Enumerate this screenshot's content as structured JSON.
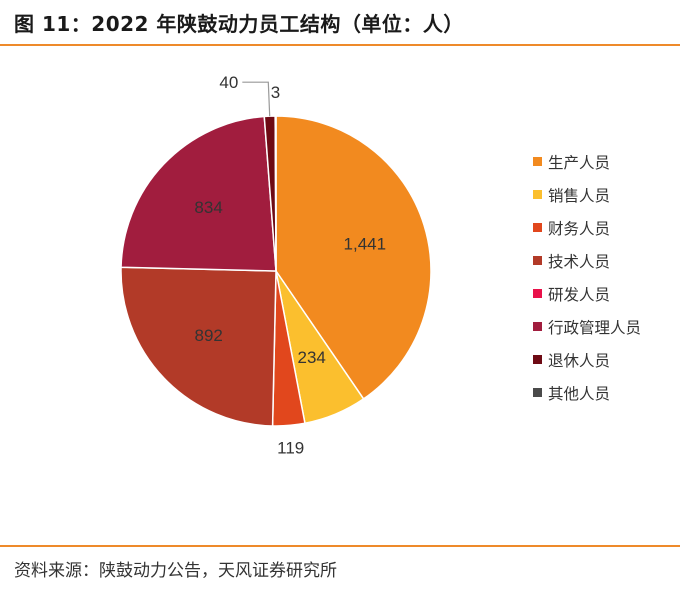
{
  "title": "图 11：2022 年陕鼓动力员工结构（单位：人）",
  "source": "资料来源：陕鼓动力公告，天风证券研究所",
  "chart_data": {
    "type": "pie",
    "categories": [
      "生产人员",
      "销售人员",
      "财务人员",
      "技术人员",
      "研发人员",
      "行政管理人员",
      "退休人员",
      "其他人员"
    ],
    "values": [
      1441,
      234,
      119,
      892,
      0,
      834,
      40,
      3
    ],
    "labels": [
      "1,441",
      "234",
      "119",
      "892",
      "",
      "834",
      "40",
      "3"
    ],
    "colors": [
      "#f28a1f",
      "#fbbf2e",
      "#e1471d",
      "#b23a28",
      "#e9114a",
      "#a11d3e",
      "#6e0a14",
      "#4a4a4a"
    ],
    "legend_position": "right"
  }
}
